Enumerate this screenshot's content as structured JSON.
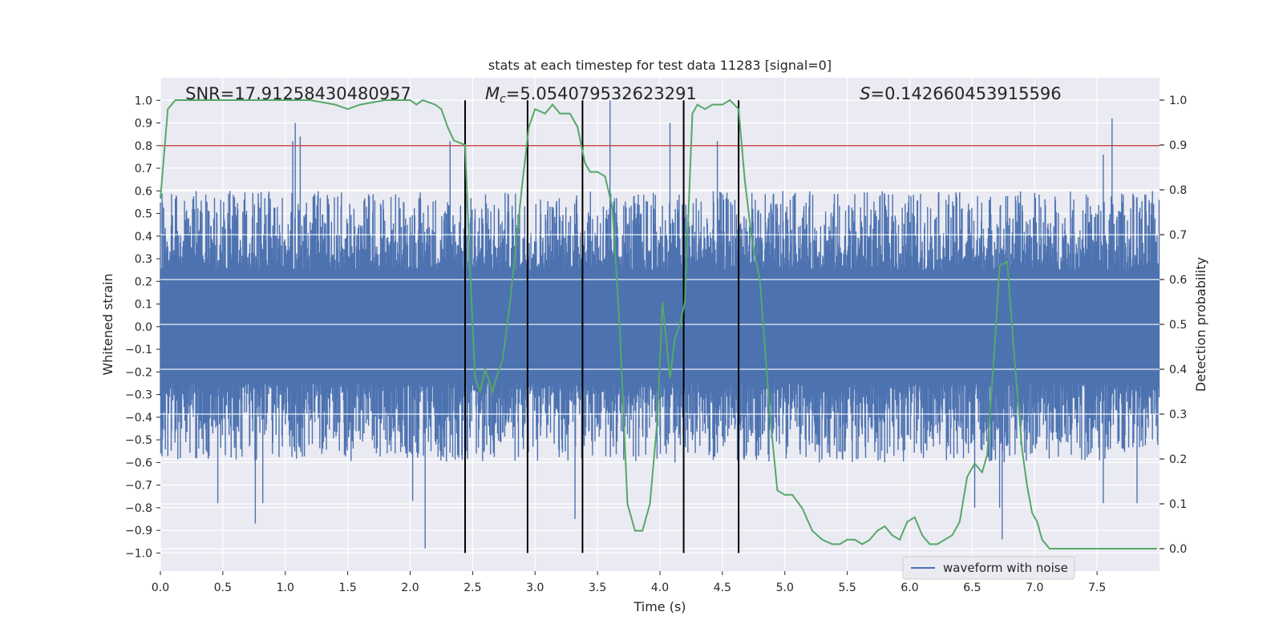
{
  "chart_data": {
    "type": "line",
    "title": "stats at each timestep for test data 11283 [signal=0]",
    "xlabel": "Time (s)",
    "ylabel_left": "Whitened strain",
    "ylabel_right": "Detection probability",
    "xlim": [
      0.0,
      8.0
    ],
    "ylim_left": [
      -1.08,
      1.1
    ],
    "ylim_right": [
      -0.05,
      1.05
    ],
    "x_ticks": [
      0.0,
      0.5,
      1.0,
      1.5,
      2.0,
      2.5,
      3.0,
      3.5,
      4.0,
      4.5,
      5.0,
      5.5,
      6.0,
      6.5,
      7.0,
      7.5
    ],
    "x_tick_labels": [
      "0.0",
      "0.5",
      "1.0",
      "1.5",
      "2.0",
      "2.5",
      "3.0",
      "3.5",
      "4.0",
      "4.5",
      "5.0",
      "5.5",
      "6.0",
      "6.5",
      "7.0",
      "7.5"
    ],
    "y_left_ticks": [
      -1.0,
      -0.9,
      -0.8,
      -0.7,
      -0.6,
      -0.5,
      -0.4,
      -0.3,
      -0.2,
      -0.1,
      0.0,
      0.1,
      0.2,
      0.3,
      0.4,
      0.5,
      0.6,
      0.7,
      0.8,
      0.9,
      1.0
    ],
    "y_left_tick_labels": [
      "−1.0",
      "−0.9",
      "−0.8",
      "−0.7",
      "−0.6",
      "−0.5",
      "−0.4",
      "−0.3",
      "−0.2",
      "−0.1",
      "0.0",
      "0.1",
      "0.2",
      "0.3",
      "0.4",
      "0.5",
      "0.6",
      "0.7",
      "0.8",
      "0.9",
      "1.0"
    ],
    "y_right_ticks": [
      0.0,
      0.1,
      0.2,
      0.3,
      0.4,
      0.5,
      0.6,
      0.7,
      0.8,
      0.9,
      1.0
    ],
    "y_right_tick_labels": [
      "0.0",
      "0.1",
      "0.2",
      "0.3",
      "0.4",
      "0.5",
      "0.6",
      "0.7",
      "0.8",
      "0.9",
      "1.0"
    ],
    "grid": true,
    "background": "#eaeaf2",
    "annotations": [
      {
        "text": "SNR=17.91258430480957",
        "x": 0.2
      },
      {
        "text_parts": [
          {
            "t": "M",
            "style": "italic"
          },
          {
            "t": "c",
            "style": "italic-sub"
          },
          {
            "t": "=5.054079532623291",
            "style": "normal"
          }
        ],
        "x": 2.6
      },
      {
        "text_parts": [
          {
            "t": "S",
            "style": "italic"
          },
          {
            "t": "=0.142660453915596",
            "style": "normal"
          }
        ],
        "x": 5.6
      }
    ],
    "threshold": {
      "y_left": 0.8,
      "color": "#c44e52"
    },
    "vertical_lines": {
      "x": [
        2.44,
        2.94,
        3.38,
        4.19,
        4.63
      ],
      "y_range_left": [
        -1.0,
        1.0
      ],
      "color": "#000000"
    },
    "series": [
      {
        "name": "waveform with noise",
        "axis": "left",
        "color": "#4c72b0",
        "style": "dense noise",
        "envelope_positive_typical": [
          0.25,
          0.6
        ],
        "envelope_negative_typical": [
          -0.25,
          -0.6
        ],
        "peaks": [
          {
            "x": 1.08,
            "y": 0.9
          },
          {
            "x": 1.12,
            "y": 0.84
          },
          {
            "x": 1.06,
            "y": 0.82
          },
          {
            "x": 2.32,
            "y": 0.82
          },
          {
            "x": 3.6,
            "y": 1.0
          },
          {
            "x": 4.08,
            "y": 0.9
          },
          {
            "x": 4.46,
            "y": 0.82
          },
          {
            "x": 7.62,
            "y": 0.92
          },
          {
            "x": 7.55,
            "y": 0.76
          },
          {
            "x": 0.76,
            "y": -0.87
          },
          {
            "x": 0.46,
            "y": -0.78
          },
          {
            "x": 0.82,
            "y": -0.78
          },
          {
            "x": 2.12,
            "y": -0.98
          },
          {
            "x": 2.02,
            "y": -0.77
          },
          {
            "x": 3.32,
            "y": -0.85
          },
          {
            "x": 6.74,
            "y": -0.94
          },
          {
            "x": 6.72,
            "y": -0.8
          },
          {
            "x": 6.52,
            "y": -0.8
          },
          {
            "x": 7.55,
            "y": -0.78
          },
          {
            "x": 7.82,
            "y": -0.78
          }
        ]
      },
      {
        "name": "Detection probability",
        "axis": "right",
        "color": "#55a868",
        "x": [
          0.0,
          0.06,
          0.12,
          0.2,
          0.3,
          0.5,
          0.7,
          0.9,
          1.0,
          1.2,
          1.4,
          1.5,
          1.6,
          1.8,
          2.0,
          2.05,
          2.1,
          2.2,
          2.25,
          2.3,
          2.35,
          2.44,
          2.48,
          2.52,
          2.56,
          2.6,
          2.66,
          2.7,
          2.74,
          2.8,
          2.9,
          2.95,
          3.0,
          3.08,
          3.14,
          3.2,
          3.28,
          3.34,
          3.4,
          3.44,
          3.5,
          3.56,
          3.62,
          3.68,
          3.74,
          3.8,
          3.86,
          3.92,
          3.98,
          4.02,
          4.08,
          4.12,
          4.16,
          4.2,
          4.26,
          4.3,
          4.36,
          4.42,
          4.5,
          4.56,
          4.63,
          4.68,
          4.74,
          4.8,
          4.88,
          4.94,
          5.0,
          5.06,
          5.14,
          5.22,
          5.3,
          5.38,
          5.44,
          5.5,
          5.56,
          5.62,
          5.68,
          5.74,
          5.8,
          5.86,
          5.92,
          5.98,
          6.04,
          6.1,
          6.16,
          6.22,
          6.28,
          6.34,
          6.4,
          6.46,
          6.52,
          6.58,
          6.62,
          6.68,
          6.72,
          6.78,
          6.84,
          6.9,
          6.94,
          6.98,
          7.02,
          7.06,
          7.12,
          7.18,
          7.24,
          7.3,
          7.4,
          7.5,
          7.6,
          7.7,
          7.8,
          7.92,
          7.98
        ],
        "y": [
          0.78,
          0.98,
          1.0,
          1.0,
          1.0,
          1.0,
          1.0,
          1.0,
          1.0,
          1.0,
          0.99,
          0.98,
          0.99,
          1.0,
          1.0,
          0.99,
          1.0,
          0.99,
          0.98,
          0.94,
          0.91,
          0.9,
          0.62,
          0.38,
          0.35,
          0.4,
          0.35,
          0.39,
          0.42,
          0.55,
          0.82,
          0.94,
          0.98,
          0.97,
          0.99,
          0.97,
          0.97,
          0.94,
          0.86,
          0.84,
          0.84,
          0.83,
          0.76,
          0.48,
          0.1,
          0.04,
          0.04,
          0.1,
          0.29,
          0.55,
          0.38,
          0.47,
          0.5,
          0.55,
          0.97,
          0.99,
          0.98,
          0.99,
          0.99,
          1.0,
          0.98,
          0.82,
          0.68,
          0.6,
          0.3,
          0.13,
          0.12,
          0.12,
          0.09,
          0.04,
          0.02,
          0.01,
          0.01,
          0.02,
          0.02,
          0.01,
          0.02,
          0.04,
          0.05,
          0.03,
          0.02,
          0.06,
          0.07,
          0.03,
          0.01,
          0.01,
          0.02,
          0.03,
          0.06,
          0.16,
          0.19,
          0.17,
          0.21,
          0.45,
          0.63,
          0.64,
          0.42,
          0.22,
          0.14,
          0.08,
          0.06,
          0.02,
          0.0,
          0.0,
          0.0,
          0.0,
          0.0,
          0.0,
          0.0,
          0.0,
          0.0,
          0.0,
          0.0
        ]
      }
    ],
    "legend": {
      "location": "lower-right",
      "entries": [
        "waveform with noise"
      ]
    }
  }
}
